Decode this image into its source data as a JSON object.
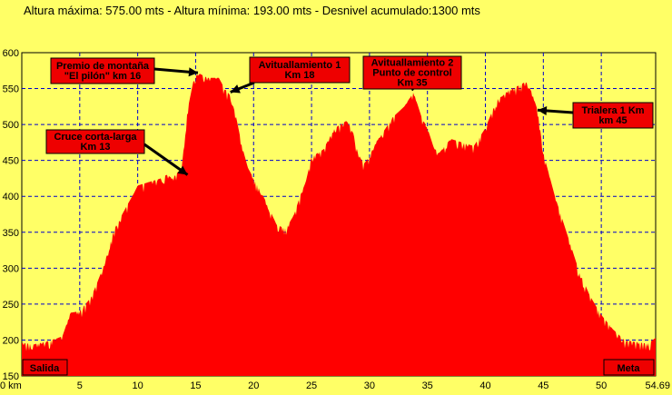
{
  "header": {
    "summary": "Altura máxima: 575.00 mts - Altura mínima: 193.00 mts - Desnivel acumulado:1300 mts"
  },
  "chart_data": {
    "type": "area",
    "title": "Altura máxima: 575.00 mts - Altura mínima: 193.00 mts - Desnivel acumulado:1300 mts",
    "xlabel": "",
    "ylabel": "",
    "xlim": [
      0,
      54.69
    ],
    "ylim": [
      150,
      600
    ],
    "x_ticks": [
      "0 km",
      "5",
      "10",
      "15",
      "20",
      "25",
      "30",
      "35",
      "40",
      "45",
      "50",
      "54.69"
    ],
    "x_tick_values": [
      0,
      5,
      10,
      15,
      20,
      25,
      30,
      35,
      40,
      45,
      50,
      54.69
    ],
    "y_ticks": [
      150,
      200,
      250,
      300,
      350,
      400,
      450,
      500,
      550,
      600
    ],
    "grid": true,
    "fill_color": "#ff0000",
    "background_color": "#ffff66",
    "series": [
      {
        "values_km": [
          0,
          1,
          2,
          3.5,
          4.2,
          5,
          6,
          7,
          8,
          9,
          9.7,
          10,
          11,
          12,
          12.5,
          13,
          13.8,
          14.3,
          14.8,
          15.2,
          16,
          17,
          17.5,
          18,
          18.5,
          19,
          19.5,
          20,
          21,
          22,
          22.8,
          23.5,
          24,
          24.5,
          25,
          26,
          26.5,
          27,
          28,
          28.5,
          29,
          29.5,
          30,
          30.5,
          31,
          32,
          33,
          33.8,
          34.5,
          35,
          35.5,
          36,
          37,
          38,
          39,
          40,
          41,
          41.5,
          42,
          43,
          43.5,
          44,
          44.5,
          45,
          46,
          47,
          48,
          49,
          50,
          51,
          52,
          53,
          54,
          54.69
        ],
        "values_alt": [
          196,
          194,
          197,
          205,
          238,
          240,
          260,
          300,
          355,
          385,
          405,
          415,
          420,
          425,
          430,
          425,
          440,
          520,
          560,
          572,
          565,
          565,
          550,
          540,
          510,
          470,
          440,
          425,
          395,
          360,
          355,
          375,
          400,
          420,
          455,
          465,
          480,
          495,
          505,
          495,
          460,
          445,
          455,
          475,
          485,
          510,
          525,
          545,
          510,
          495,
          470,
          460,
          480,
          475,
          470,
          495,
          535,
          540,
          548,
          555,
          560,
          545,
          520,
          460,
          400,
          350,
          300,
          262,
          235,
          215,
          200,
          197,
          195,
          203
        ]
      }
    ],
    "annotations": [
      {
        "text_lines": [
          "Premio de montaña",
          "\"El pilón\"  km 16"
        ],
        "km": 16
      },
      {
        "text_lines": [
          "Avituallamiento 1",
          "Km 18"
        ],
        "km": 18
      },
      {
        "text_lines": [
          "Cruce corta-larga",
          "Km 13"
        ],
        "km": 13
      },
      {
        "text_lines": [
          "Avituallamiento 2",
          "Punto de control",
          "Km 35"
        ],
        "km": 35
      },
      {
        "text_lines": [
          "Trialera 1 Km",
          "km 45"
        ],
        "km": 45
      }
    ],
    "endpoint_labels": {
      "start": "Salida",
      "end": "Meta"
    }
  }
}
